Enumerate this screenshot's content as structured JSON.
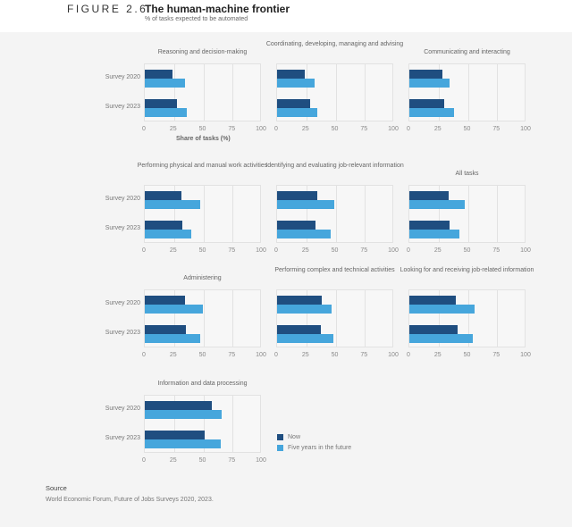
{
  "header": {
    "figure": "FIGURE 2.6",
    "title": "The human-machine frontier",
    "subtitle": "% of tasks expected to be automated"
  },
  "colors": {
    "now": "#1f4e80",
    "future": "#46a6dc"
  },
  "source": {
    "label": "Source",
    "text": "World Economic Forum, Future of Jobs Surveys 2020, 2023."
  },
  "chart_data": {
    "type": "bar",
    "orientation": "horizontal",
    "xlim": [
      0,
      100
    ],
    "xticks": [
      0,
      25,
      50,
      75,
      100
    ],
    "xlabel": "Share of tasks (%)",
    "categories": [
      "Survey 2020",
      "Survey 2023"
    ],
    "legend": [
      "Now",
      "Five years in the future"
    ],
    "legend_placement": "bottom-center",
    "grid": true,
    "panels": [
      {
        "title": "Reasoning and decision-making",
        "now": [
          24,
          27.5
        ],
        "future": [
          34,
          35.5
        ]
      },
      {
        "title": "Coordinating, developing, managing and advising",
        "now": [
          24,
          28.5
        ],
        "future": [
          32,
          34.5
        ]
      },
      {
        "title": "Communicating and interacting",
        "now": [
          28,
          30
        ],
        "future": [
          34.5,
          38
        ]
      },
      {
        "title": "Performing physical and manual work activities",
        "now": [
          31,
          32
        ],
        "future": [
          47,
          40
        ]
      },
      {
        "title": "Identifying and evaluating job-relevant information",
        "now": [
          34,
          33
        ],
        "future": [
          49,
          46
        ]
      },
      {
        "title": "All tasks",
        "now": [
          33.5,
          34
        ],
        "future": [
          47.5,
          43
        ]
      },
      {
        "title": "Administering",
        "now": [
          34.5,
          35
        ],
        "future": [
          49.5,
          47
        ]
      },
      {
        "title": "Performing complex and technical activities",
        "now": [
          38.5,
          37.5
        ],
        "future": [
          46.5,
          48
        ]
      },
      {
        "title": "Looking for and receiving job-related information",
        "now": [
          39.5,
          41
        ],
        "future": [
          55.5,
          54
        ]
      },
      {
        "title": "Information and data processing",
        "now": [
          57,
          51
        ],
        "future": [
          66,
          65
        ]
      }
    ]
  }
}
